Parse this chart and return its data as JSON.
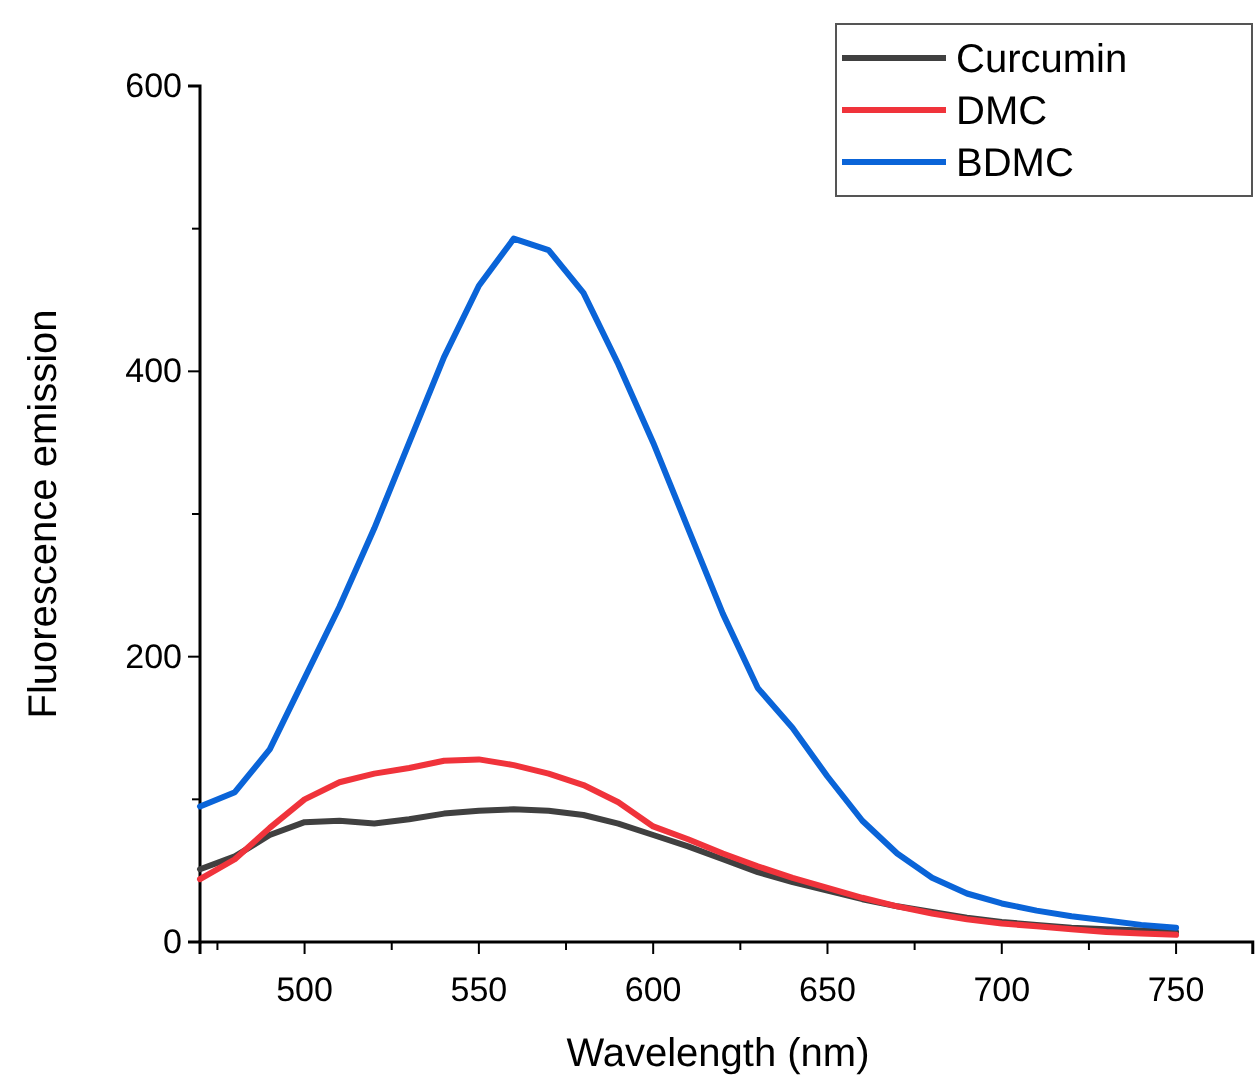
{
  "chart_data": {
    "type": "line",
    "xlabel": "Wavelength (nm)",
    "ylabel": "Fluorescence emission",
    "xlim": [
      470,
      772
    ],
    "ylim": [
      0,
      600
    ],
    "xticks": [
      {
        "value": 475,
        "label": null
      },
      500,
      {
        "value": 525,
        "label": null
      },
      550,
      {
        "value": 575,
        "label": null
      },
      600,
      {
        "value": 625,
        "label": null
      },
      650,
      {
        "value": 675,
        "label": null
      },
      700,
      {
        "value": 725,
        "label": null
      },
      750
    ],
    "yticks": [
      0,
      {
        "value": 100,
        "label": null
      },
      200,
      {
        "value": 300,
        "label": null
      },
      400,
      {
        "value": 500,
        "label": null
      },
      600
    ],
    "x": [
      470,
      480,
      490,
      500,
      510,
      520,
      530,
      540,
      550,
      560,
      570,
      580,
      590,
      600,
      610,
      620,
      630,
      640,
      650,
      660,
      670,
      680,
      690,
      700,
      710,
      720,
      730,
      740,
      750
    ],
    "grid": false,
    "legend": "top right",
    "marker": "none",
    "line_style": "solid",
    "series": [
      {
        "name": "Curcumin",
        "color": "#404040",
        "values": [
          51,
          60,
          75,
          84,
          85,
          83,
          86,
          90,
          92,
          93,
          92,
          89,
          83,
          75,
          67,
          58,
          49,
          42,
          36,
          30,
          25,
          21,
          17,
          14,
          12,
          10,
          9,
          8,
          7
        ]
      },
      {
        "name": "DMC",
        "color": "#f0333b",
        "values": [
          44,
          58,
          80,
          100,
          112,
          118,
          122,
          127,
          128,
          124,
          118,
          110,
          98,
          81,
          72,
          62,
          53,
          45,
          38,
          31,
          25,
          20,
          16,
          13,
          11,
          9,
          7,
          6,
          5
        ]
      },
      {
        "name": "BDMC",
        "color": "#0a64d8",
        "values": [
          95,
          105,
          135,
          185,
          235,
          290,
          350,
          410,
          460,
          493,
          485,
          455,
          405,
          350,
          290,
          230,
          178,
          150,
          116,
          85,
          62,
          45,
          34,
          27,
          22,
          18,
          15,
          12,
          10
        ]
      }
    ]
  }
}
